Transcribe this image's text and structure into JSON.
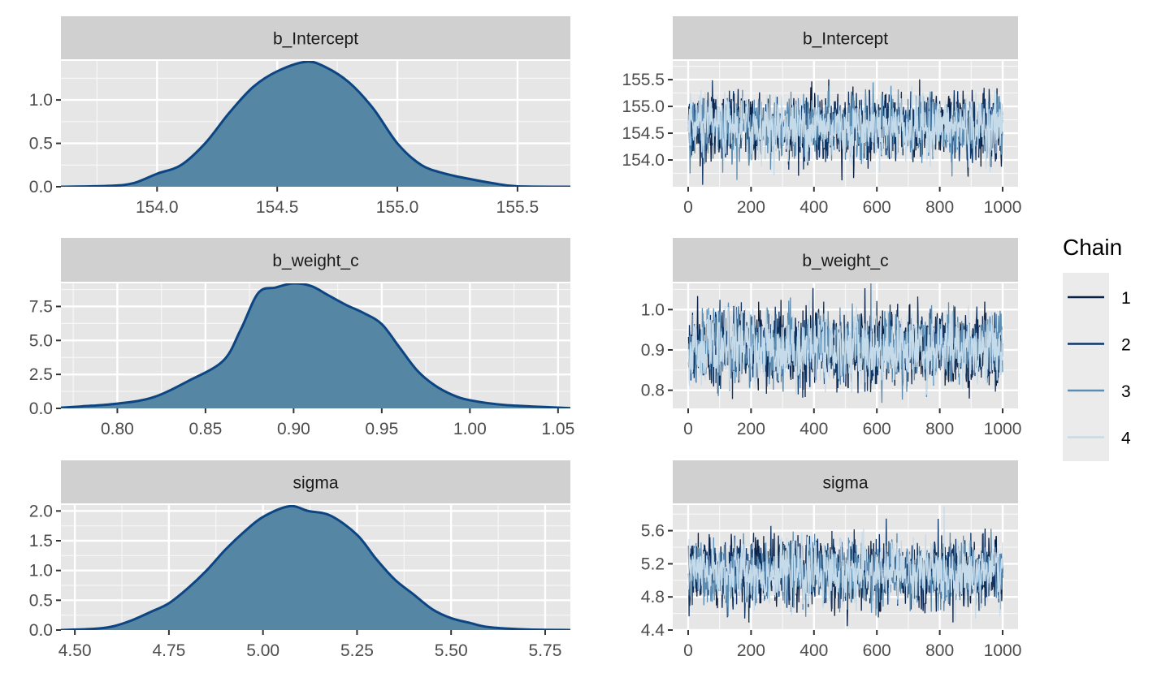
{
  "legend": {
    "title": "Chain",
    "placement": "right",
    "entries": [
      "1",
      "2",
      "3",
      "4"
    ],
    "colors": [
      "#0a1f44",
      "#0f3566",
      "#5b8db3",
      "#c6dbea"
    ]
  },
  "colors": {
    "panel_bg": "#e6e6e6",
    "strip_bg": "#d0d0d0",
    "density_fill": "#5586a4",
    "density_line": "#0d4583"
  },
  "chart_data": [
    {
      "type": "area",
      "panel": "density",
      "title": "b_Intercept",
      "xlim": [
        153.6,
        155.72
      ],
      "ylim": [
        0,
        1.45
      ],
      "xticks": [
        154.0,
        154.5,
        155.0,
        155.5
      ],
      "xtick_labels": [
        "154.0",
        "154.5",
        "155.0",
        "155.5"
      ],
      "yticks": [
        0,
        0.5,
        1.0
      ],
      "ytick_labels": [
        "0.0",
        "0.5",
        "1.0"
      ],
      "grid": true,
      "x": [
        153.6,
        153.8,
        153.9,
        154.0,
        154.1,
        154.2,
        154.3,
        154.4,
        154.5,
        154.62,
        154.7,
        154.8,
        154.9,
        155.0,
        155.1,
        155.2,
        155.3,
        155.4,
        155.5,
        155.72
      ],
      "y": [
        0.0,
        0.01,
        0.04,
        0.15,
        0.25,
        0.5,
        0.85,
        1.15,
        1.33,
        1.44,
        1.38,
        1.2,
        0.9,
        0.5,
        0.25,
        0.15,
        0.09,
        0.04,
        0.005,
        0.0
      ]
    },
    {
      "type": "area",
      "panel": "density",
      "title": "b_weight_c",
      "xlim": [
        0.768,
        1.057
      ],
      "ylim": [
        0,
        9.2
      ],
      "xticks": [
        0.8,
        0.85,
        0.9,
        0.95,
        1.0,
        1.05
      ],
      "xtick_labels": [
        "0.80",
        "0.85",
        "0.90",
        "0.95",
        "1.00",
        "1.05"
      ],
      "yticks": [
        0,
        2.5,
        5.0,
        7.5
      ],
      "ytick_labels": [
        "0.0",
        "2.5",
        "5.0",
        "7.5"
      ],
      "grid": true,
      "x": [
        0.768,
        0.78,
        0.8,
        0.82,
        0.84,
        0.86,
        0.87,
        0.88,
        0.89,
        0.9,
        0.91,
        0.92,
        0.93,
        0.94,
        0.95,
        0.96,
        0.97,
        0.98,
        0.99,
        1.0,
        1.02,
        1.057
      ],
      "y": [
        0.05,
        0.15,
        0.35,
        0.8,
        2.0,
        3.5,
        5.8,
        8.5,
        8.9,
        9.2,
        9.0,
        8.3,
        7.6,
        7.0,
        6.2,
        4.5,
        2.8,
        1.7,
        1.0,
        0.6,
        0.25,
        0.02
      ]
    },
    {
      "type": "area",
      "panel": "density",
      "title": "sigma",
      "xlim": [
        4.463,
        5.817
      ],
      "ylim": [
        0,
        2.1
      ],
      "xticks": [
        4.5,
        4.75,
        5.0,
        5.25,
        5.5,
        5.75
      ],
      "xtick_labels": [
        "4.50",
        "4.75",
        "5.00",
        "5.25",
        "5.50",
        "5.75"
      ],
      "yticks": [
        0,
        0.5,
        1.0,
        1.5,
        2.0
      ],
      "ytick_labels": [
        "0.0",
        "0.5",
        "1.0",
        "1.5",
        "2.0"
      ],
      "grid": true,
      "x": [
        4.463,
        4.55,
        4.6,
        4.65,
        4.7,
        4.75,
        4.8,
        4.85,
        4.9,
        4.95,
        5.0,
        5.07,
        5.12,
        5.18,
        5.25,
        5.3,
        5.35,
        5.4,
        5.45,
        5.5,
        5.55,
        5.6,
        5.7,
        5.817
      ],
      "y": [
        0.0,
        0.02,
        0.06,
        0.16,
        0.3,
        0.45,
        0.7,
        1.0,
        1.35,
        1.65,
        1.9,
        2.08,
        2.0,
        1.92,
        1.6,
        1.2,
        0.85,
        0.6,
        0.35,
        0.2,
        0.12,
        0.05,
        0.01,
        0.0
      ]
    },
    {
      "type": "line",
      "panel": "trace",
      "title": "b_Intercept",
      "xlim": [
        -49,
        1049
      ],
      "ylim": [
        153.5,
        155.85
      ],
      "xticks": [
        0,
        200,
        400,
        600,
        800,
        1000
      ],
      "xtick_labels": [
        "0",
        "200",
        "400",
        "600",
        "800",
        "1000"
      ],
      "yticks": [
        154.0,
        154.5,
        155.0,
        155.5
      ],
      "ytick_labels": [
        "154.0",
        "154.5",
        "155.0",
        "155.5"
      ],
      "grid": true,
      "iterations": 1000,
      "series": [
        {
          "name": "1",
          "mean": 154.62,
          "sd": 0.29
        },
        {
          "name": "2",
          "mean": 154.62,
          "sd": 0.28
        },
        {
          "name": "3",
          "mean": 154.62,
          "sd": 0.27
        },
        {
          "name": "4",
          "mean": 154.62,
          "sd": 0.27
        }
      ]
    },
    {
      "type": "line",
      "panel": "trace",
      "title": "b_weight_c",
      "xlim": [
        -49,
        1049
      ],
      "ylim": [
        0.755,
        1.065
      ],
      "xticks": [
        0,
        200,
        400,
        600,
        800,
        1000
      ],
      "xtick_labels": [
        "0",
        "200",
        "400",
        "600",
        "800",
        "1000"
      ],
      "yticks": [
        0.8,
        0.9,
        1.0
      ],
      "ytick_labels": [
        "0.8",
        "0.9",
        "1.0"
      ],
      "grid": true,
      "iterations": 1000,
      "series": [
        {
          "name": "1",
          "mean": 0.905,
          "sd": 0.043
        },
        {
          "name": "2",
          "mean": 0.905,
          "sd": 0.043
        },
        {
          "name": "3",
          "mean": 0.905,
          "sd": 0.042
        },
        {
          "name": "4",
          "mean": 0.905,
          "sd": 0.042
        }
      ]
    },
    {
      "type": "line",
      "panel": "trace",
      "title": "sigma",
      "xlim": [
        -49,
        1049
      ],
      "ylim": [
        4.4,
        5.91
      ],
      "xticks": [
        0,
        200,
        400,
        600,
        800,
        1000
      ],
      "xtick_labels": [
        "0",
        "200",
        "400",
        "600",
        "800",
        "1000"
      ],
      "yticks": [
        4.4,
        4.8,
        5.2,
        5.6
      ],
      "ytick_labels": [
        "4.4",
        "4.8",
        "5.2",
        "5.6"
      ],
      "grid": true,
      "iterations": 1000,
      "series": [
        {
          "name": "1",
          "mean": 5.09,
          "sd": 0.19
        },
        {
          "name": "2",
          "mean": 5.09,
          "sd": 0.19
        },
        {
          "name": "3",
          "mean": 5.09,
          "sd": 0.18
        },
        {
          "name": "4",
          "mean": 5.09,
          "sd": 0.18
        }
      ]
    }
  ]
}
